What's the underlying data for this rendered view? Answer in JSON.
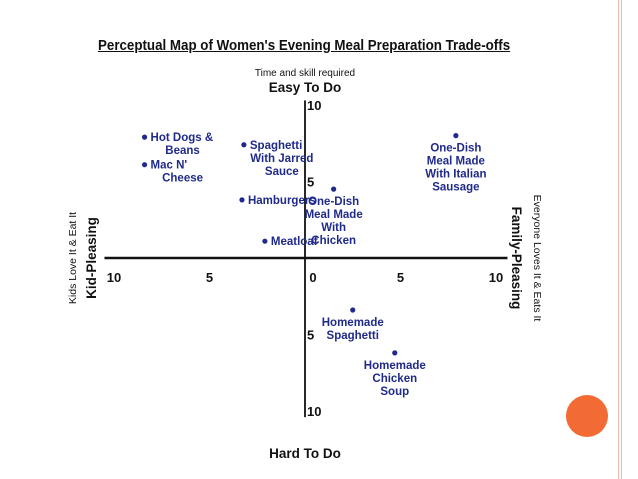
{
  "chart_data": {
    "type": "scatter",
    "title": "Perceptual Map of Women's Evening Meal Preparation Trade-offs",
    "axes": {
      "top_small": "Time and skill required",
      "top": "Easy To Do",
      "bottom": "Hard To Do",
      "left": "Kid-Pleasing",
      "left_small": "Kids Love It & Eat It",
      "right": "Family-Pleasing",
      "right_small": "Everyone Loves It & Eats It"
    },
    "xlim": [
      -10,
      10
    ],
    "ylim": [
      -10,
      10
    ],
    "x_ticks": [
      {
        "value": -10,
        "label": "10"
      },
      {
        "value": -5,
        "label": "5"
      },
      {
        "value": 0,
        "label": "0"
      },
      {
        "value": 5,
        "label": "5"
      },
      {
        "value": 10,
        "label": "10"
      }
    ],
    "y_ticks": [
      {
        "value": 10,
        "label": "10"
      },
      {
        "value": 5,
        "label": "5"
      },
      {
        "value": -5,
        "label": "5"
      },
      {
        "value": -10,
        "label": "10"
      }
    ],
    "points": [
      {
        "lines": [
          "Hot Dogs &",
          "Beans"
        ],
        "x": -8.4,
        "y": 7.9,
        "anchor": "right"
      },
      {
        "lines": [
          "Mac N'",
          "Cheese"
        ],
        "x": -8.4,
        "y": 6.1,
        "anchor": "right"
      },
      {
        "lines": [
          "Spaghetti",
          "With Jarred",
          "Sauce"
        ],
        "x": -3.2,
        "y": 7.4,
        "anchor": "right"
      },
      {
        "lines": [
          "Hamburgers"
        ],
        "x": -3.3,
        "y": 3.8,
        "anchor": "right"
      },
      {
        "lines": [
          "Meatloaf"
        ],
        "x": -2.1,
        "y": 1.1,
        "anchor": "right"
      },
      {
        "lines": [
          "One-Dish",
          "Meal Made",
          "With",
          "Chicken"
        ],
        "x": 1.5,
        "y": 4.5,
        "anchor": "below"
      },
      {
        "lines": [
          "One-Dish",
          "Meal Made",
          "With Italian",
          "Sausage"
        ],
        "x": 7.9,
        "y": 8.0,
        "anchor": "below"
      },
      {
        "lines": [
          "Homemade",
          "Spaghetti"
        ],
        "x": 2.5,
        "y": -3.4,
        "anchor": "below"
      },
      {
        "lines": [
          "Homemade",
          "Chicken",
          "Soup"
        ],
        "x": 4.7,
        "y": -6.2,
        "anchor": "below"
      }
    ]
  }
}
